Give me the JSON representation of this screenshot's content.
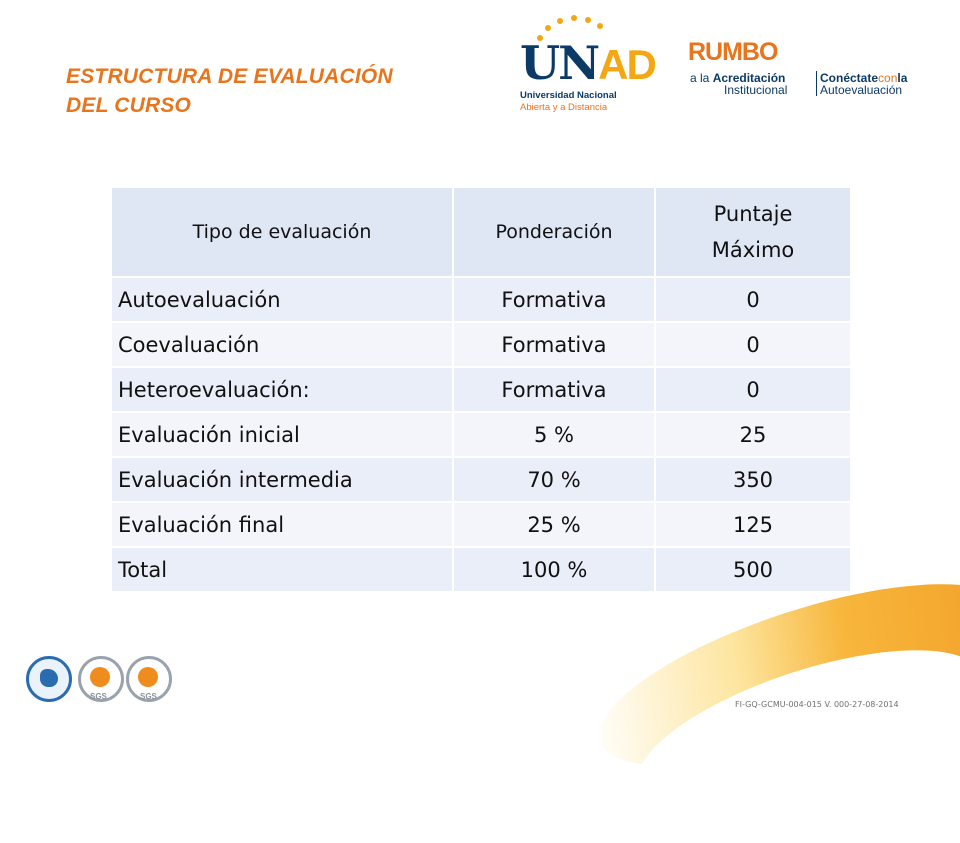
{
  "header": {
    "title_line1": "ESTRUCTURA DE EVALUACIÓN",
    "title_line2": "DEL CURSO"
  },
  "logos": {
    "unad": {
      "word_u": "U",
      "word_n": "N",
      "word_ad": "AD",
      "line1": "Universidad Nacional",
      "line2": "Abierta y a Distancia"
    },
    "rumbo": {
      "word": "RUMBO",
      "line1_prefix": "a la ",
      "line1_bold": "Acreditación",
      "line2": "Institucional",
      "line3_a": "Conéctate",
      "line3_b": "con",
      "line3_c": "la",
      "line4": "Autoevaluación"
    }
  },
  "table": {
    "headers": [
      "Tipo de evaluación",
      "Ponderación",
      "Puntaje",
      "Máximo"
    ],
    "rows": [
      [
        "Autoevaluación",
        "Formativa",
        "0"
      ],
      [
        "Coevaluación",
        "Formativa",
        "0"
      ],
      [
        "Heteroevaluación:",
        "Formativa",
        "0"
      ],
      [
        "Evaluación inicial",
        "5 %",
        "25"
      ],
      [
        "Evaluación intermedia",
        "70 %",
        "350"
      ],
      [
        "Evaluación final",
        "25 %",
        "125"
      ],
      [
        "Total",
        "100 %",
        "500"
      ]
    ]
  },
  "footer": {
    "sgs1": "SGS",
    "sgs2": "SGS",
    "code": "FI-GQ-GCMU-004-015 V. 000-27-08-2014"
  },
  "colors": {
    "title": "#e8741c",
    "header_row": "#dfe6f4",
    "row": "#e9eef8",
    "row_alt": "#f3f5fb"
  }
}
